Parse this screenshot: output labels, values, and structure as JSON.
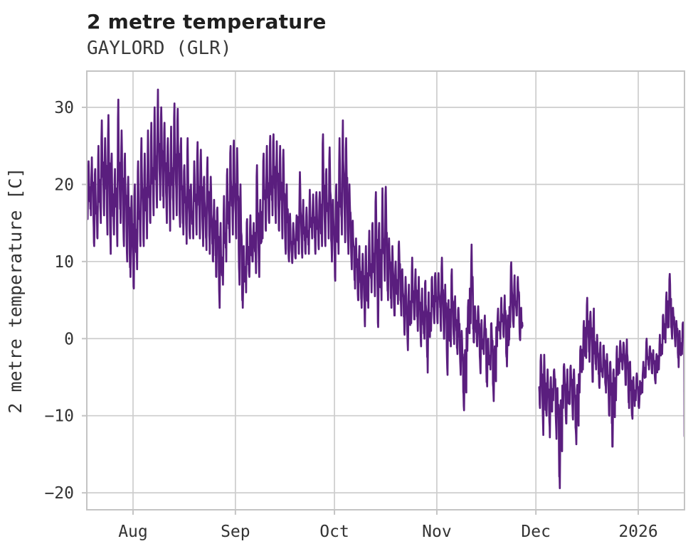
{
  "header": {
    "title": "2 metre temperature",
    "subtitle": "GAYLORD (GLR)"
  },
  "chart_data": {
    "type": "line",
    "title": "2 metre temperature",
    "subtitle": "GAYLORD (GLR)",
    "station": "GAYLORD (GLR)",
    "ylabel": "2 metre temperature [C]",
    "xlabel": "",
    "grid": true,
    "legend": "none",
    "line_color": "#5a1e7e",
    "grid_color": "#cdcdcd",
    "spine_color": "#c4c4c4",
    "text_color": "#333333",
    "ylim": [
      -22.2,
      34.7
    ],
    "y_ticks": [
      30,
      20,
      10,
      0,
      -10,
      -20
    ],
    "y_tick_labels": [
      "30",
      "20",
      "10",
      "0",
      "−10",
      "−20"
    ],
    "x_tick_labels": [
      "Aug",
      "Sep",
      "Oct",
      "Nov",
      "Dec",
      "2026"
    ],
    "x_tick_days": [
      14,
      45,
      75,
      106,
      136,
      167
    ],
    "xlim_days": [
      0,
      181
    ],
    "series": [
      {
        "name": "2 metre temperature",
        "unit": "C",
        "sampling": "daily [min,max] envelope of hourly trace; null = no data (gap late Nov)",
        "daily_min_max": [
          [
            15.5,
            23
          ],
          [
            16,
            23.5
          ],
          [
            12,
            22
          ],
          [
            13,
            25
          ],
          [
            15,
            28.3
          ],
          [
            16,
            26
          ],
          [
            13.5,
            29
          ],
          [
            11,
            24
          ],
          [
            13.5,
            22
          ],
          [
            12,
            31
          ],
          [
            15,
            27
          ],
          [
            12,
            24
          ],
          [
            10,
            21
          ],
          [
            8,
            18.5
          ],
          [
            6.5,
            20
          ],
          [
            9,
            23
          ],
          [
            12,
            26
          ],
          [
            12,
            24
          ],
          [
            13,
            27
          ],
          [
            15,
            28
          ],
          [
            16,
            30
          ],
          [
            17,
            32.3
          ],
          [
            18,
            30
          ],
          [
            17,
            28
          ],
          [
            15,
            26
          ],
          [
            14,
            27.5
          ],
          [
            15.5,
            30.5
          ],
          [
            16,
            29.8
          ],
          [
            14.5,
            26
          ],
          [
            13.5,
            22.5
          ],
          [
            12.3,
            26
          ],
          [
            13,
            20
          ],
          [
            13,
            23
          ],
          [
            13.5,
            25.5
          ],
          [
            13,
            24.5
          ],
          [
            12,
            21
          ],
          [
            11.5,
            23.5
          ],
          [
            11,
            21
          ],
          [
            10,
            18
          ],
          [
            8,
            17
          ],
          [
            4,
            15
          ],
          [
            7,
            18.5
          ],
          [
            10,
            22
          ],
          [
            12.5,
            25
          ],
          [
            13.5,
            25.7
          ],
          [
            13,
            24.7
          ],
          [
            7,
            20
          ],
          [
            4,
            12
          ],
          [
            6,
            15.5
          ],
          [
            8,
            16
          ],
          [
            10,
            15
          ],
          [
            8.5,
            22.5
          ],
          [
            8,
            18
          ],
          [
            13,
            24
          ],
          [
            14,
            25
          ],
          [
            15,
            26.3
          ],
          [
            16,
            26.5
          ],
          [
            15,
            25.6
          ],
          [
            14,
            25
          ],
          [
            13,
            24.5
          ],
          [
            11,
            20
          ],
          [
            10,
            16.2
          ],
          [
            9.8,
            15
          ],
          [
            10.4,
            16
          ],
          [
            11,
            21.6
          ],
          [
            10.5,
            18
          ],
          [
            11,
            17
          ],
          [
            11,
            19.3
          ],
          [
            13,
            18.7
          ],
          [
            11,
            19
          ],
          [
            11.6,
            19
          ],
          [
            12,
            26.5
          ],
          [
            12,
            22
          ],
          [
            13,
            24.8
          ],
          [
            10,
            18
          ],
          [
            7.5,
            20
          ],
          [
            11,
            26
          ],
          [
            13.5,
            28.3
          ],
          [
            12.5,
            26
          ],
          [
            11,
            20
          ],
          [
            9,
            15.3
          ],
          [
            6.5,
            13
          ],
          [
            5,
            12
          ],
          [
            4,
            11
          ],
          [
            1.6,
            12
          ],
          [
            4,
            14
          ],
          [
            6,
            15
          ],
          [
            5.5,
            19
          ],
          [
            1.5,
            15
          ],
          [
            5,
            19.5
          ],
          [
            7.5,
            19.7
          ],
          [
            5,
            13
          ],
          [
            4,
            12
          ],
          [
            3,
            10
          ],
          [
            4.5,
            12.6
          ],
          [
            3,
            9
          ],
          [
            0.5,
            8
          ],
          [
            -1.5,
            7
          ],
          [
            2,
            10.5
          ],
          [
            2.5,
            9
          ],
          [
            1,
            8
          ],
          [
            -1,
            6.5
          ],
          [
            0,
            7.5
          ],
          [
            -4.4,
            6
          ],
          [
            1,
            8
          ],
          [
            2,
            8.5
          ],
          [
            2,
            8.5
          ],
          [
            1,
            10.5
          ],
          [
            0,
            7
          ],
          [
            -4.7,
            5
          ],
          [
            -1,
            9
          ],
          [
            -0.7,
            5.5
          ],
          [
            -2,
            4
          ],
          [
            -4.7,
            1
          ],
          [
            -9.3,
            -1.5
          ],
          [
            -1.6,
            5
          ],
          [
            2,
            12.2
          ],
          [
            -0.5,
            4.2
          ],
          [
            -1,
            4.2
          ],
          [
            -4.5,
            2.4
          ],
          [
            -2,
            3
          ],
          [
            -6.2,
            0
          ],
          [
            -4,
            2
          ],
          [
            -8.1,
            -1
          ],
          [
            -1,
            3.9
          ],
          [
            0,
            5.3
          ],
          [
            0.2,
            5.6
          ],
          [
            -3.6,
            3
          ],
          [
            1.5,
            9.9
          ],
          [
            1.5,
            8.2
          ],
          [
            3,
            8
          ],
          [
            -0.2,
            4
          ],
          null,
          null,
          null,
          null,
          null,
          [
            -9,
            -2.1
          ],
          [
            -12.5,
            -2.1
          ],
          [
            -10,
            -4
          ],
          [
            -12.8,
            -5
          ],
          [
            -8,
            -4
          ],
          [
            -13,
            -6.4
          ],
          [
            -19.4,
            -8
          ],
          [
            -9,
            -3.3
          ],
          [
            -11,
            -4
          ],
          [
            -8.5,
            -3.5
          ],
          [
            -10.5,
            -4
          ],
          [
            -13.7,
            -6
          ],
          [
            -7,
            -1
          ],
          [
            -4,
            2.3
          ],
          [
            -2.5,
            5.3
          ],
          [
            -3,
            3.5
          ],
          [
            -5.6,
            3.9
          ],
          [
            -4,
            0.5
          ],
          [
            -6.4,
            -0.5
          ],
          [
            -5,
            -0.9
          ],
          [
            -7,
            -2
          ],
          [
            -10,
            -3
          ],
          [
            -14,
            -4
          ],
          [
            -8,
            -1
          ],
          [
            -4.5,
            -0.3
          ],
          [
            -4,
            -0.5
          ],
          [
            -6,
            -0.1
          ],
          [
            -9,
            -3
          ],
          [
            -10.4,
            -5
          ],
          [
            -8,
            -4.5
          ],
          [
            -9,
            -5.5
          ],
          [
            -7,
            -3
          ],
          [
            -5,
            0
          ],
          [
            -4,
            -1
          ],
          [
            -4.5,
            -1.5
          ],
          [
            -5.8,
            -2
          ],
          [
            -4,
            0.5
          ],
          [
            -2,
            3.1
          ],
          [
            -0.5,
            6
          ],
          [
            1.5,
            8.4
          ],
          [
            0,
            4
          ],
          [
            -1,
            2.3
          ],
          [
            -3.7,
            1
          ],
          [
            -2,
            2.1
          ],
          [
            -12.9,
            -12.5
          ]
        ]
      }
    ]
  }
}
